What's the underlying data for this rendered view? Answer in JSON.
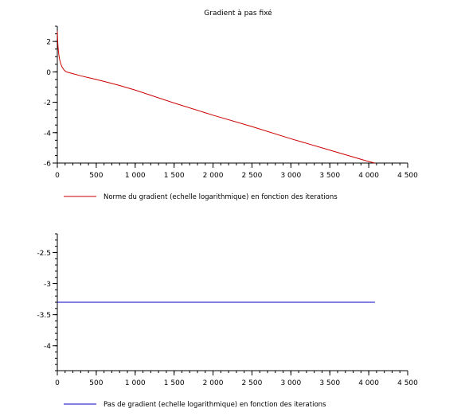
{
  "figure_title": "Gradient à pas fixé",
  "chart_data": [
    {
      "type": "line",
      "title": "Gradient à pas fixé",
      "xlabel": "",
      "ylabel": "",
      "xlim": [
        0,
        4500
      ],
      "ylim": [
        -6,
        3
      ],
      "x_ticks": [
        0,
        500,
        1000,
        1500,
        2000,
        2500,
        3000,
        3500,
        4000,
        4500
      ],
      "x_tick_labels": [
        "0",
        "500",
        "1 000",
        "1 500",
        "2 000",
        "2 500",
        "3 000",
        "3 500",
        "4 000",
        "4 500"
      ],
      "y_ticks": [
        2,
        0,
        -2,
        -4,
        -6
      ],
      "y_tick_labels": [
        "2",
        "0",
        "-2",
        "-4",
        "-6"
      ],
      "grid": false,
      "legend_position": "bottom-left",
      "series": [
        {
          "name": "Norme du gradient (echelle logarithmique) en fonction des iterations",
          "color": "#cc0000",
          "x": [
            0,
            5,
            10,
            20,
            30,
            40,
            50,
            60,
            75,
            90,
            110,
            130,
            200,
            300,
            400,
            500,
            600,
            700,
            800,
            1000,
            1500,
            2000,
            2500,
            3000,
            3500,
            4000,
            4080
          ],
          "y": [
            2.7,
            2.0,
            1.6,
            1.1,
            0.8,
            0.6,
            0.45,
            0.33,
            0.2,
            0.1,
            0.02,
            -0.02,
            -0.12,
            -0.26,
            -0.38,
            -0.5,
            -0.63,
            -0.76,
            -0.9,
            -1.2,
            -2.05,
            -2.85,
            -3.6,
            -4.4,
            -5.15,
            -5.9,
            -6.0
          ]
        }
      ]
    },
    {
      "type": "line",
      "title": "",
      "xlabel": "",
      "ylabel": "",
      "xlim": [
        0,
        4500
      ],
      "ylim": [
        -4.4,
        -2.2
      ],
      "x_ticks": [
        0,
        500,
        1000,
        1500,
        2000,
        2500,
        3000,
        3500,
        4000,
        4500
      ],
      "x_tick_labels": [
        "0",
        "500",
        "1 000",
        "1 500",
        "2 000",
        "2 500",
        "3 000",
        "3 500",
        "4 000",
        "4 500"
      ],
      "y_ticks": [
        -2.5,
        -3,
        -3.5,
        -4
      ],
      "y_tick_labels": [
        "-2.5",
        "-3",
        "-3.5",
        "-4"
      ],
      "grid": false,
      "legend_position": "bottom-left",
      "series": [
        {
          "name": "Pas de gradient (echelle logarithmique) en fonction des iterations",
          "color": "#0000cc",
          "x": [
            0,
            4080
          ],
          "y": [
            -3.3,
            -3.3
          ]
        }
      ]
    }
  ]
}
